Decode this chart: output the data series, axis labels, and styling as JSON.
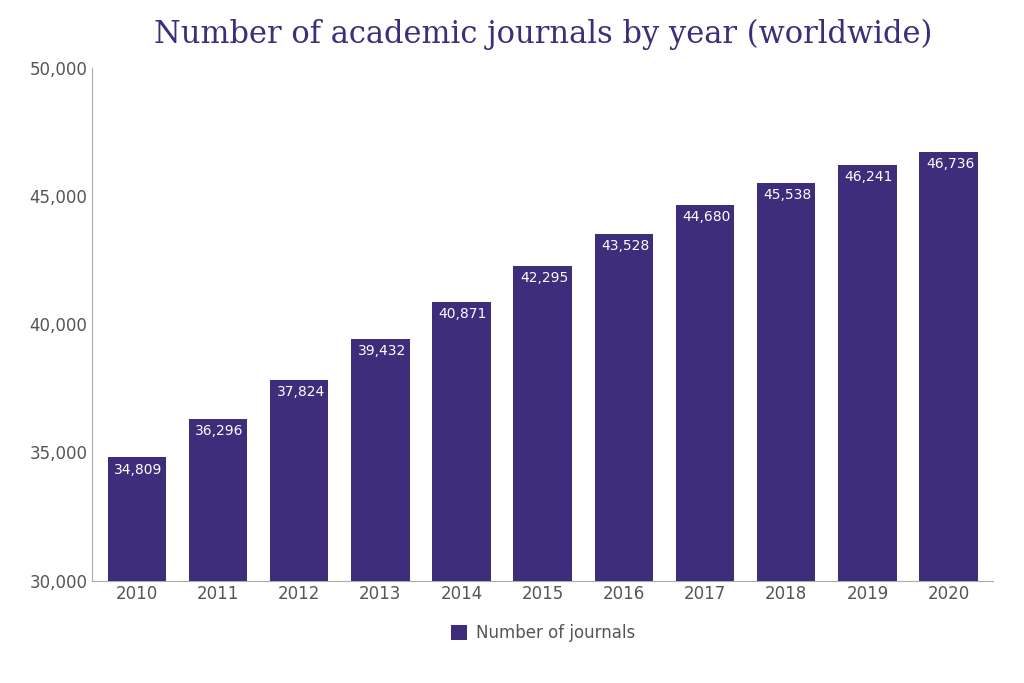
{
  "title": "Number of academic journals by year (worldwide)",
  "years": [
    2010,
    2011,
    2012,
    2013,
    2014,
    2015,
    2016,
    2017,
    2018,
    2019,
    2020
  ],
  "values": [
    34809,
    36296,
    37824,
    39432,
    40871,
    42295,
    43528,
    44680,
    45538,
    46241,
    46736
  ],
  "bar_color": "#3d2d7a",
  "label_color": "#ffffff",
  "title_color": "#3d2d7a",
  "axis_label_color": "#555555",
  "background_color": "#ffffff",
  "ylim": [
    30000,
    50000
  ],
  "yticks": [
    30000,
    35000,
    40000,
    45000,
    50000
  ],
  "legend_label": "Number of journals",
  "title_fontsize": 22,
  "bar_label_fontsize": 10,
  "tick_fontsize": 12,
  "legend_fontsize": 12,
  "left_spine_color": "#aaaaaa",
  "bottom_spine_color": "#aaaaaa",
  "bar_width": 0.72
}
